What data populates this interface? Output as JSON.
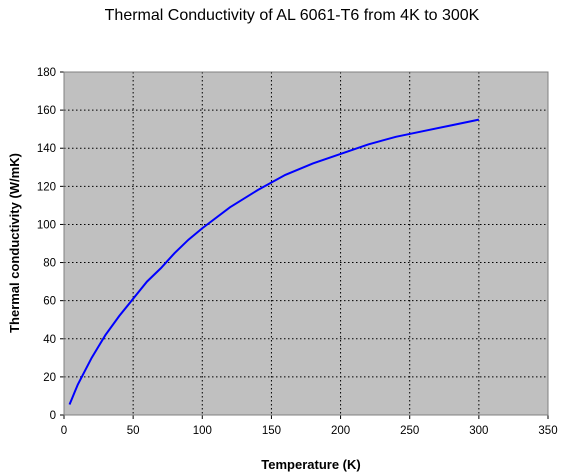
{
  "chart_data": {
    "type": "line",
    "title": "Thermal Conductivity of AL 6061-T6 from 4K to 300K",
    "xlabel": "Temperature (K)",
    "ylabel": "Thermal conductivity (W/mK)",
    "xlim": [
      0,
      350
    ],
    "ylim": [
      0,
      180
    ],
    "xticks": [
      0,
      50,
      100,
      150,
      200,
      250,
      300,
      350
    ],
    "yticks": [
      0,
      20,
      40,
      60,
      80,
      100,
      120,
      140,
      160,
      180
    ],
    "xtick_labels": [
      "0",
      "50",
      "100",
      "150",
      "200",
      "250",
      "300",
      "350"
    ],
    "ytick_labels": [
      "0",
      "20",
      "40",
      "60",
      "80",
      "100",
      "120",
      "140",
      "160",
      "180"
    ],
    "grid": true,
    "legend": "none",
    "colors": {
      "plot_background": "#c0c0c0",
      "series": "#0000ff",
      "grid": "#000000"
    },
    "series": [
      {
        "x": [
          4,
          6,
          8,
          10,
          15,
          20,
          25,
          30,
          40,
          50,
          60,
          70,
          80,
          90,
          100,
          120,
          140,
          160,
          180,
          200,
          220,
          240,
          260,
          280,
          300
        ],
        "values": [
          5.5,
          9,
          12.5,
          16,
          23,
          30,
          36,
          42,
          52,
          61,
          70,
          77,
          85,
          92,
          98,
          109,
          118,
          126,
          132,
          137,
          142,
          146,
          149,
          152,
          155
        ]
      }
    ]
  }
}
